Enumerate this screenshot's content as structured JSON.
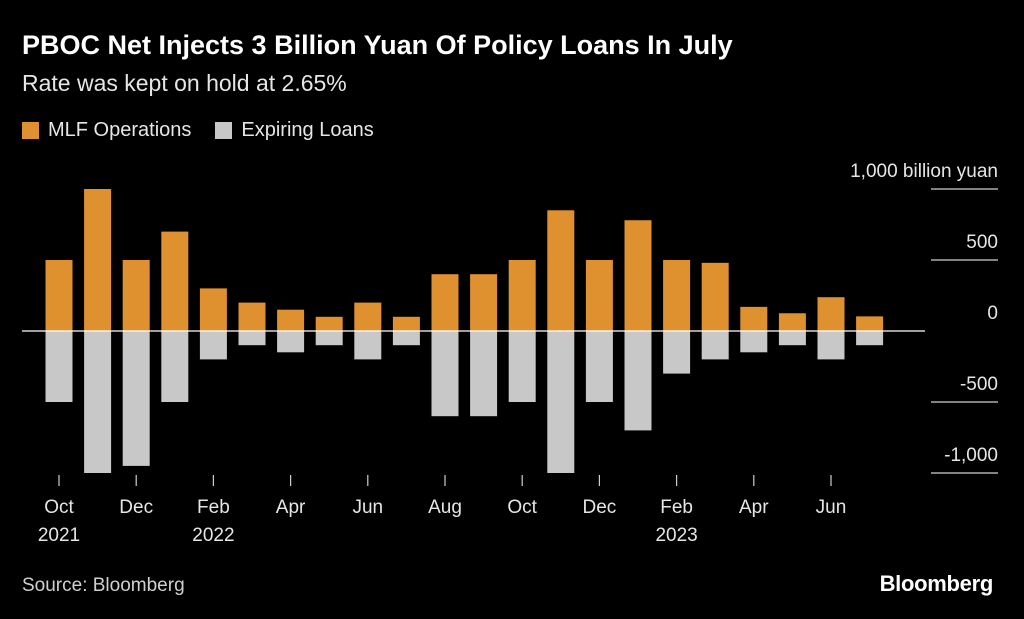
{
  "title": "PBOC Net Injects 3 Billion Yuan Of Policy Loans In July",
  "subtitle": "Rate was kept on hold at 2.65%",
  "source": "Source: Bloomberg",
  "brand": "Bloomberg",
  "colors": {
    "mlf": "#e0912f",
    "expiring": "#c8c8c8",
    "background": "#000000"
  },
  "chart_data": {
    "type": "bar",
    "unit_label": "billion yuan",
    "ylim": [
      -1000,
      1000
    ],
    "yticks": [
      {
        "value": 1000,
        "label": "1,000"
      },
      {
        "value": 500,
        "label": "500"
      },
      {
        "value": 0,
        "label": "0"
      },
      {
        "value": -500,
        "label": "-500"
      },
      {
        "value": -1000,
        "label": "-1,000"
      }
    ],
    "categories": [
      "Oct 2021",
      "Nov 2021",
      "Dec 2021",
      "Jan 2022",
      "Feb 2022",
      "Mar 2022",
      "Apr 2022",
      "May 2022",
      "Jun 2022",
      "Jul 2022",
      "Aug 2022",
      "Sep 2022",
      "Oct 2022",
      "Nov 2022",
      "Dec 2022",
      "Jan 2023",
      "Feb 2023",
      "Mar 2023",
      "Apr 2023",
      "May 2023",
      "Jun 2023",
      "Jul 2023"
    ],
    "xtick_labels": [
      {
        "index": 0,
        "line1": "Oct",
        "line2": "2021"
      },
      {
        "index": 2,
        "line1": "Dec",
        "line2": ""
      },
      {
        "index": 4,
        "line1": "Feb",
        "line2": "2022"
      },
      {
        "index": 6,
        "line1": "Apr",
        "line2": ""
      },
      {
        "index": 8,
        "line1": "Jun",
        "line2": ""
      },
      {
        "index": 10,
        "line1": "Aug",
        "line2": ""
      },
      {
        "index": 12,
        "line1": "Oct",
        "line2": ""
      },
      {
        "index": 14,
        "line1": "Dec",
        "line2": ""
      },
      {
        "index": 16,
        "line1": "Feb",
        "line2": "2023"
      },
      {
        "index": 18,
        "line1": "Apr",
        "line2": ""
      },
      {
        "index": 20,
        "line1": "Jun",
        "line2": ""
      }
    ],
    "legend_placement": "top-left",
    "series": [
      {
        "name": "MLF Operations",
        "values": [
          500,
          1000,
          500,
          700,
          300,
          200,
          150,
          100,
          200,
          100,
          400,
          400,
          500,
          850,
          500,
          780,
          500,
          480,
          170,
          125,
          238,
          103
        ]
      },
      {
        "name": "Expiring Loans",
        "values": [
          -500,
          -1000,
          -950,
          -500,
          -200,
          -100,
          -150,
          -100,
          -200,
          -100,
          -600,
          -600,
          -500,
          -1000,
          -500,
          -700,
          -300,
          -200,
          -150,
          -100,
          -200,
          -100
        ]
      }
    ]
  }
}
